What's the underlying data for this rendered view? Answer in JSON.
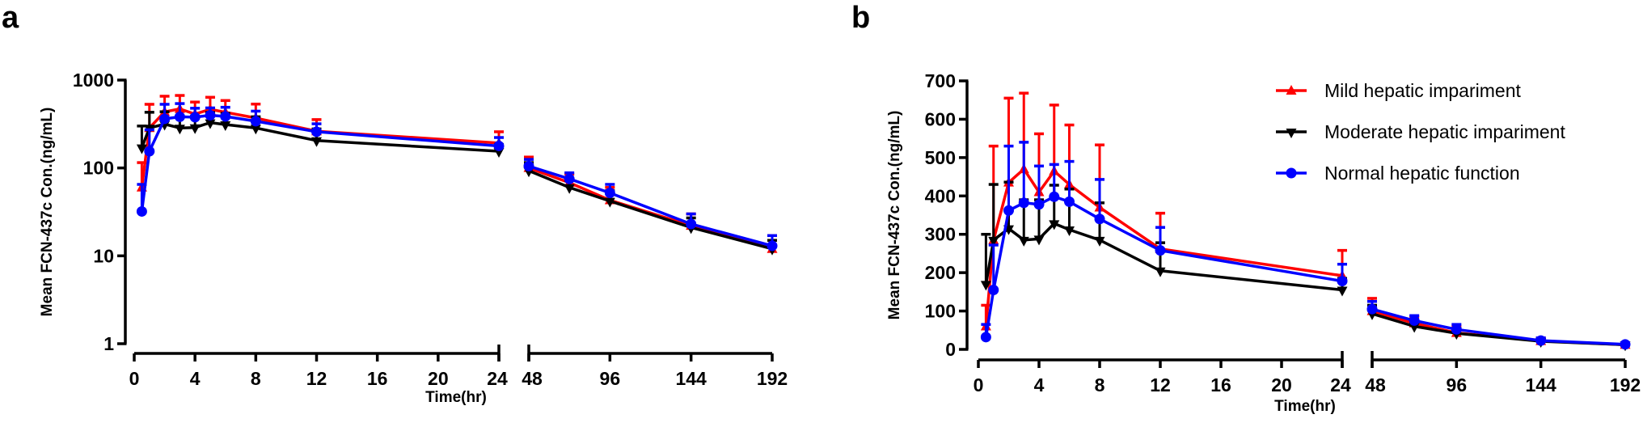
{
  "figure": {
    "panel_labels": [
      "a",
      "b"
    ]
  },
  "chart_data": [
    {
      "panel": "a",
      "type": "line",
      "scale": "log",
      "title": "",
      "xlabel": "Time(hr)",
      "ylabel": "Mean FCN-437c Con.(ng/mL)",
      "ylim": [
        1,
        1000
      ],
      "yticks": [
        1,
        10,
        100,
        1000
      ],
      "ytick_labels": [
        "1",
        "10",
        "100",
        "1000"
      ],
      "x_broken_axis": true,
      "x_segments": [
        {
          "range": [
            0,
            24
          ],
          "ticks": [
            0,
            4,
            8,
            12,
            16,
            20,
            24
          ],
          "tick_labels": [
            "0",
            "4",
            "8",
            "12",
            "16",
            "20",
            "24"
          ]
        },
        {
          "range": [
            48,
            192
          ],
          "ticks": [
            48,
            96,
            144,
            192
          ],
          "tick_labels": [
            "48",
            "96",
            "144",
            "192"
          ]
        }
      ],
      "grid": false,
      "legend": "none",
      "series_ref": "shared"
    },
    {
      "panel": "b",
      "type": "line",
      "scale": "linear",
      "title": "",
      "xlabel": "Time(hr)",
      "ylabel": "Mean FCN-437c Con.(ng/mL)",
      "ylim": [
        0,
        700
      ],
      "yticks": [
        0,
        100,
        200,
        300,
        400,
        500,
        600,
        700
      ],
      "ytick_labels": [
        "0",
        "100",
        "200",
        "300",
        "400",
        "500",
        "600",
        "700"
      ],
      "x_broken_axis": true,
      "x_segments": [
        {
          "range": [
            0,
            24
          ],
          "ticks": [
            0,
            4,
            8,
            12,
            16,
            20,
            24
          ],
          "tick_labels": [
            "0",
            "4",
            "8",
            "12",
            "16",
            "20",
            "24"
          ]
        },
        {
          "range": [
            48,
            192
          ],
          "ticks": [
            48,
            96,
            144,
            192
          ],
          "tick_labels": [
            "48",
            "96",
            "144",
            "192"
          ]
        }
      ],
      "grid": false,
      "legend": "top-right",
      "series_ref": "shared"
    }
  ],
  "series": {
    "x": [
      0.5,
      1,
      2,
      3,
      4,
      5,
      6,
      8,
      12,
      24,
      48,
      72,
      96,
      144,
      192
    ],
    "groups": [
      {
        "name": "Mild hepatic impariment",
        "color": "#ff0000",
        "marker": "triangle-up",
        "values": [
          60,
          285,
          435,
          470,
          410,
          465,
          430,
          370,
          262,
          192,
          100,
          68,
          43,
          22,
          12
        ],
        "sd_upper": [
          115,
          530,
          655,
          668,
          562,
          637,
          585,
          533,
          355,
          258,
          133,
          85,
          60,
          30,
          17
        ]
      },
      {
        "name": "Moderate hepatic impariment",
        "color": "#000000",
        "marker": "triangle-down",
        "values": [
          170,
          285,
          315,
          285,
          288,
          328,
          312,
          285,
          205,
          155,
          93,
          60,
          42,
          21,
          12
        ],
        "sd_upper": [
          300,
          430,
          436,
          390,
          390,
          428,
          418,
          382,
          278,
          185,
          115,
          72,
          55,
          27,
          15
        ]
      },
      {
        "name": "Normal hepatic function",
        "color": "#0000ff",
        "marker": "circle",
        "values": [
          32,
          155,
          362,
          382,
          378,
          398,
          385,
          340,
          258,
          178,
          105,
          75,
          52,
          23,
          13
        ],
        "sd_upper": [
          65,
          272,
          530,
          540,
          478,
          482,
          490,
          443,
          318,
          222,
          125,
          88,
          65,
          30,
          17
        ]
      }
    ]
  }
}
